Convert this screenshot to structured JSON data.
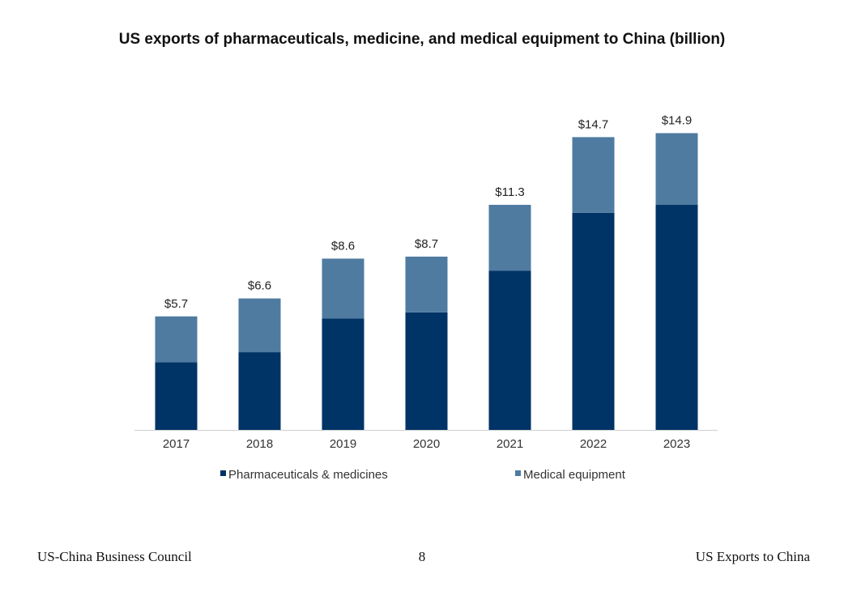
{
  "colors": {
    "pharma": "#003366",
    "medical": "#4f7ba1",
    "axis": "#d0d0d0"
  },
  "chart_data": {
    "type": "bar",
    "stacked": true,
    "title": "US exports of pharmaceuticals, medicine, and medical equipment to China (billion)",
    "xlabel": "",
    "ylabel": "",
    "categories": [
      "2017",
      "2018",
      "2019",
      "2020",
      "2021",
      "2022",
      "2023"
    ],
    "series": [
      {
        "name": "Pharmaceuticals & medicines",
        "values": [
          3.4,
          3.9,
          5.6,
          5.9,
          8.0,
          10.9,
          11.3
        ]
      },
      {
        "name": "Medical equipment",
        "values": [
          2.3,
          2.7,
          3.0,
          2.8,
          3.3,
          3.8,
          3.6
        ]
      }
    ],
    "totals": [
      5.7,
      6.6,
      8.6,
      8.7,
      11.3,
      14.7,
      14.9
    ],
    "total_labels": [
      "$5.7",
      "$6.6",
      "$8.6",
      "$8.7",
      "$11.3",
      "$14.7",
      "$14.9"
    ],
    "ylim": [
      0,
      15
    ],
    "grid": false,
    "legend": "bottom"
  },
  "footer": {
    "left": "US-China Business Council",
    "page": "8",
    "right": "US Exports to China"
  }
}
